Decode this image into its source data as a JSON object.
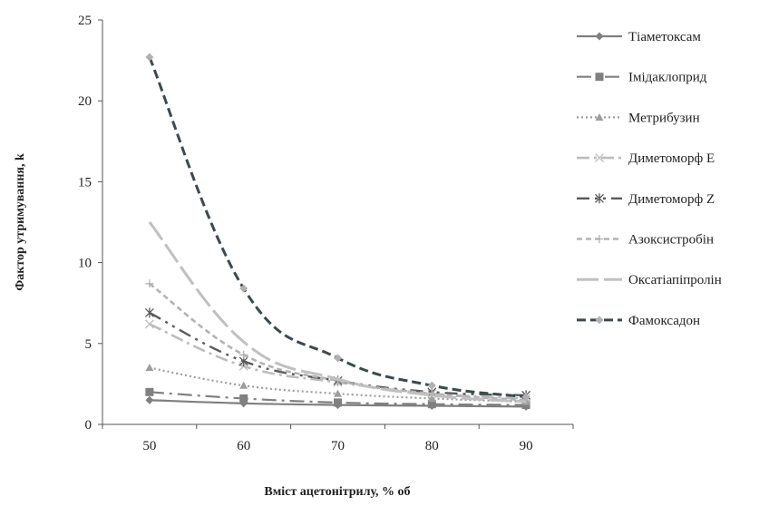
{
  "chart_data": {
    "type": "line",
    "title": "",
    "xlabel": "Вміст  ацетонітрилу, % об",
    "ylabel": "Фактор утримування, k",
    "x": [
      50,
      60,
      70,
      80,
      90
    ],
    "x_ticks": [
      "50",
      "60",
      "70",
      "80",
      "90"
    ],
    "xlim": [
      45,
      95
    ],
    "ylim": [
      0,
      25
    ],
    "y_ticks": [
      "0",
      "5",
      "10",
      "15",
      "20",
      "25"
    ],
    "grid": false,
    "legend_position": "right",
    "series": [
      {
        "name": "Тіаметоксам",
        "values": [
          1.5,
          1.3,
          1.2,
          1.15,
          1.1
        ],
        "color": "#7f7f7f",
        "marker": "diamond",
        "dash": "",
        "width": 2.2
      },
      {
        "name": "Імідаклоприд",
        "values": [
          2.0,
          1.6,
          1.35,
          1.25,
          1.2
        ],
        "color": "#808080",
        "marker": "square",
        "dash": "16 6 3 6",
        "width": 2.2
      },
      {
        "name": "Метрибузин",
        "values": [
          3.5,
          2.4,
          1.9,
          1.6,
          1.4
        ],
        "color": "#9e9e9e",
        "marker": "triangle",
        "dash": "2 3",
        "width": 2.2
      },
      {
        "name": "Диметоморф Е",
        "values": [
          6.2,
          3.6,
          2.6,
          1.9,
          1.6
        ],
        "color": "#bdbdbd",
        "marker": "x",
        "dash": "14 5 3 5",
        "width": 2.6
      },
      {
        "name": "Диметоморф Z",
        "values": [
          6.9,
          3.9,
          2.7,
          2.0,
          1.8
        ],
        "color": "#5a5a5a",
        "marker": "asterisk",
        "dash": "14 6 3 6 3 6",
        "width": 2.4
      },
      {
        "name": "Азоксистробін",
        "values": [
          8.7,
          4.3,
          2.7,
          1.9,
          1.5
        ],
        "color": "#b3b3b3",
        "marker": "plus",
        "dash": "6 4",
        "width": 2.6
      },
      {
        "name": "Оксатіапіпролін",
        "values": [
          12.5,
          5.1,
          2.8,
          1.8,
          1.4
        ],
        "color": "#c0c0c0",
        "marker": "none",
        "dash": "24 6",
        "width": 3
      },
      {
        "name": "Фамоксадон",
        "values": [
          22.7,
          8.4,
          4.1,
          2.4,
          1.7
        ],
        "color": "#3a4a50",
        "marker": "diamond",
        "marker_color": "#b0b0b0",
        "dash": "10 5",
        "width": 3
      }
    ]
  }
}
